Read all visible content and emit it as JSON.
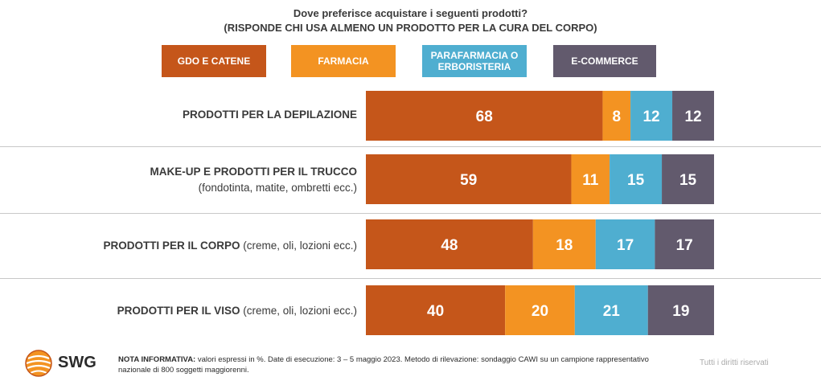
{
  "header": {
    "title": "Dove preferisce acquistare i seguenti prodotti?",
    "subtitle": "(RISPONDE CHI USA ALMENO UN PRODOTTO PER LA CURA DEL CORPO)"
  },
  "legend": [
    {
      "line1": "GDO E CATENE",
      "line2": "",
      "color": "#c5561a"
    },
    {
      "line1": "FARMACIA",
      "line2": "",
      "color": "#f39322"
    },
    {
      "line1": "PARAFARMACIA O",
      "line2": "ERBORISTERIA",
      "color": "#4faed0"
    },
    {
      "line1": "E-COMMERCE",
      "line2": "",
      "color": "#625a6d"
    }
  ],
  "rows": [
    {
      "bold": "PRODOTTI PER LA DEPILAZIONE",
      "normal": "",
      "sub": ""
    },
    {
      "bold": "MAKE-UP E PRODOTTI PER IL TRUCCO",
      "normal": "",
      "sub": "(fondotinta, matite, ombretti ecc.)"
    },
    {
      "bold": "PRODOTTI PER IL CORPO",
      "normal": " (creme, oli, lozioni ecc.)",
      "sub": ""
    },
    {
      "bold": "PRODOTTI PER IL VISO",
      "normal": " (creme, oli, lozioni ecc.)",
      "sub": ""
    }
  ],
  "chart_data": {
    "type": "bar",
    "orientation": "horizontal",
    "stacked": true,
    "title": "Dove preferisce acquistare i seguenti prodotti?",
    "subtitle": "(RISPONDE CHI USA ALMENO UN PRODOTTO PER LA CURA DEL CORPO)",
    "categories": [
      "PRODOTTI PER LA DEPILAZIONE",
      "MAKE-UP E PRODOTTI PER IL TRUCCO (fondotinta, matite, ombretti ecc.)",
      "PRODOTTI PER IL CORPO (creme, oli, lozioni ecc.)",
      "PRODOTTI PER IL VISO (creme, oli, lozioni ecc.)"
    ],
    "series": [
      {
        "name": "GDO E CATENE",
        "values": [
          68,
          59,
          48,
          40
        ],
        "color": "#c5561a"
      },
      {
        "name": "FARMACIA",
        "values": [
          8,
          11,
          18,
          20
        ],
        "color": "#f39322"
      },
      {
        "name": "PARAFARMACIA O ERBORISTERIA",
        "values": [
          12,
          15,
          17,
          21
        ],
        "color": "#4faed0"
      },
      {
        "name": "E-COMMERCE",
        "values": [
          12,
          15,
          17,
          19
        ],
        "color": "#625a6d"
      }
    ],
    "legend_position": "top",
    "grid": false,
    "unit": "%"
  },
  "footer": {
    "logo": "SWG",
    "note_bold": "NOTA INFORMATIVA:",
    "note_text": " valori espressi in %. Date di esecuzione: 3 – 5 maggio 2023. Metodo di rilevazione: sondaggio CAWI su un campione rappresentativo nazionale di 800 soggetti maggiorenni.",
    "rights": "Tutti i diritti riservati"
  }
}
